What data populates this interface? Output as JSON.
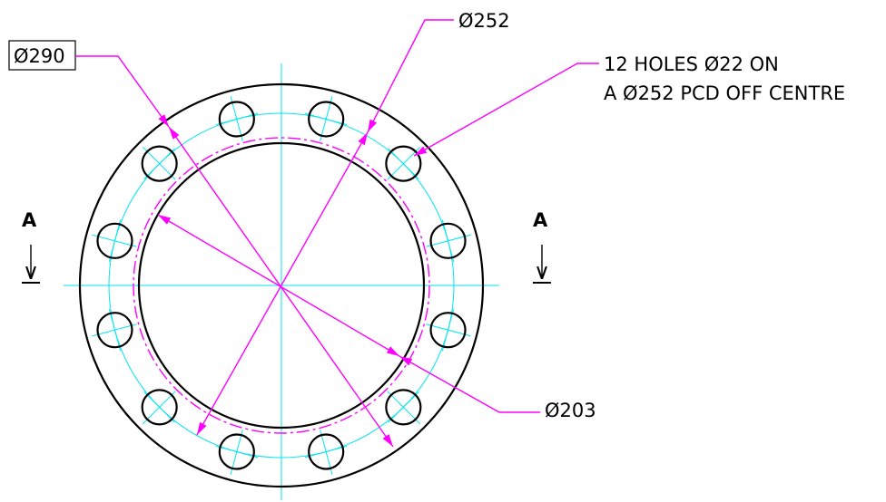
{
  "dimensions": {
    "outer_diameter": "Ø290",
    "pcd_diameter": "Ø252",
    "holes_note_line1": "12 HOLES Ø22 ON",
    "holes_note_line2": "A Ø252 PCD OFF CENTRE",
    "inner_diameter": "Ø203"
  },
  "section_marks": [
    "A",
    "A"
  ]
}
